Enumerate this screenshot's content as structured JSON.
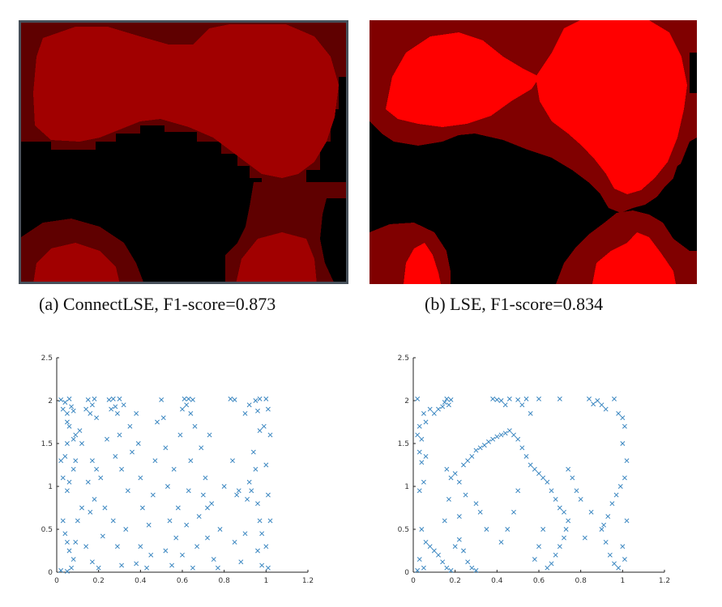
{
  "figure": {
    "panel_a": {
      "caption": "(a) ConnectLSE, F1-score=0.873",
      "colors": {
        "background": "#000000",
        "dark_red": "#5f0000",
        "red": "#a10000",
        "bright_red": "#ff0000",
        "border": "#47505a"
      }
    },
    "panel_b": {
      "caption": "(b) LSE, F1-score=0.834",
      "colors": {
        "background": "#000000",
        "dark_red": "#800000",
        "bright_red": "#ff0000"
      }
    }
  },
  "chart_data": [
    {
      "type": "scatter",
      "marker": "x",
      "color": "#3a86c0",
      "xlim": [
        0,
        1.2
      ],
      "ylim": [
        0,
        2.5
      ],
      "xticks": [
        "0",
        "0.2",
        "0.4",
        "0.6",
        "0.8",
        "1",
        "1.2"
      ],
      "yticks": [
        "0",
        "0.5",
        "1",
        "1.5",
        "2",
        "2.5"
      ],
      "points": [
        [
          0.02,
          2.01
        ],
        [
          0.04,
          1.98
        ],
        [
          0.06,
          2.02
        ],
        [
          0.03,
          1.9
        ],
        [
          0.05,
          1.85
        ],
        [
          0.07,
          1.93
        ],
        [
          0.08,
          1.88
        ],
        [
          0.05,
          1.75
        ],
        [
          0.06,
          1.7
        ],
        [
          0.08,
          1.55
        ],
        [
          0.09,
          1.6
        ],
        [
          0.05,
          1.5
        ],
        [
          0.02,
          1.3
        ],
        [
          0.04,
          1.35
        ],
        [
          0.03,
          1.1
        ],
        [
          0.06,
          1.05
        ],
        [
          0.05,
          0.95
        ],
        [
          0.03,
          0.6
        ],
        [
          0.04,
          0.45
        ],
        [
          0.05,
          0.35
        ],
        [
          0.06,
          0.25
        ],
        [
          0.08,
          0.15
        ],
        [
          0.07,
          0.05
        ],
        [
          0.02,
          0.02
        ],
        [
          0.05,
          0.01
        ],
        [
          0.09,
          0.35
        ],
        [
          0.1,
          0.6
        ],
        [
          0.12,
          0.75
        ],
        [
          0.08,
          1.2
        ],
        [
          0.09,
          1.3
        ],
        [
          0.12,
          1.5
        ],
        [
          0.11,
          1.65
        ],
        [
          0.14,
          1.9
        ],
        [
          0.15,
          2.01
        ],
        [
          0.17,
          1.95
        ],
        [
          0.18,
          2.02
        ],
        [
          0.16,
          1.85
        ],
        [
          0.19,
          1.8
        ],
        [
          0.17,
          1.3
        ],
        [
          0.19,
          1.2
        ],
        [
          0.15,
          1.05
        ],
        [
          0.18,
          0.85
        ],
        [
          0.16,
          0.7
        ],
        [
          0.14,
          0.3
        ],
        [
          0.17,
          0.12
        ],
        [
          0.2,
          0.05
        ],
        [
          0.22,
          0.42
        ],
        [
          0.23,
          0.75
        ],
        [
          0.21,
          1.1
        ],
        [
          0.24,
          1.55
        ],
        [
          0.25,
          2.01
        ],
        [
          0.27,
          2.02
        ],
        [
          0.28,
          1.93
        ],
        [
          0.29,
          1.85
        ],
        [
          0.26,
          1.9
        ],
        [
          0.3,
          2.02
        ],
        [
          0.32,
          1.95
        ],
        [
          0.3,
          1.6
        ],
        [
          0.31,
          1.2
        ],
        [
          0.28,
          1.35
        ],
        [
          0.27,
          0.6
        ],
        [
          0.29,
          0.3
        ],
        [
          0.31,
          0.08
        ],
        [
          0.33,
          0.5
        ],
        [
          0.34,
          0.95
        ],
        [
          0.36,
          1.4
        ],
        [
          0.35,
          1.7
        ],
        [
          0.38,
          1.85
        ],
        [
          0.39,
          1.5
        ],
        [
          0.4,
          1.1
        ],
        [
          0.41,
          0.75
        ],
        [
          0.4,
          0.3
        ],
        [
          0.38,
          0.1
        ],
        [
          0.43,
          0.05
        ],
        [
          0.45,
          0.2
        ],
        [
          0.44,
          0.55
        ],
        [
          0.46,
          0.9
        ],
        [
          0.47,
          1.3
        ],
        [
          0.48,
          1.75
        ],
        [
          0.5,
          2.01
        ],
        [
          0.51,
          1.8
        ],
        [
          0.52,
          1.45
        ],
        [
          0.53,
          1.0
        ],
        [
          0.54,
          0.6
        ],
        [
          0.52,
          0.25
        ],
        [
          0.55,
          0.08
        ],
        [
          0.57,
          0.4
        ],
        [
          0.58,
          0.75
        ],
        [
          0.56,
          1.2
        ],
        [
          0.59,
          1.6
        ],
        [
          0.6,
          1.9
        ],
        [
          0.61,
          2.02
        ],
        [
          0.62,
          1.95
        ],
        [
          0.63,
          2.02
        ],
        [
          0.64,
          1.85
        ],
        [
          0.65,
          2.01
        ],
        [
          0.66,
          1.7
        ],
        [
          0.64,
          1.3
        ],
        [
          0.63,
          0.95
        ],
        [
          0.62,
          0.55
        ],
        [
          0.6,
          0.2
        ],
        [
          0.65,
          0.05
        ],
        [
          0.67,
          0.3
        ],
        [
          0.68,
          0.65
        ],
        [
          0.7,
          0.9
        ],
        [
          0.72,
          0.75
        ],
        [
          0.74,
          0.8
        ],
        [
          0.71,
          1.1
        ],
        [
          0.69,
          1.45
        ],
        [
          0.73,
          1.6
        ],
        [
          0.72,
          0.4
        ],
        [
          0.75,
          0.15
        ],
        [
          0.77,
          0.05
        ],
        [
          0.78,
          0.5
        ],
        [
          0.8,
          1.0
        ],
        [
          0.83,
          2.02
        ],
        [
          0.85,
          2.01
        ],
        [
          0.84,
          1.3
        ],
        [
          0.86,
          0.9
        ],
        [
          0.87,
          0.95
        ],
        [
          0.85,
          0.35
        ],
        [
          0.88,
          0.12
        ],
        [
          0.9,
          0.45
        ],
        [
          0.91,
          0.85
        ],
        [
          0.92,
          1.05
        ],
        [
          0.93,
          0.95
        ],
        [
          0.94,
          1.4
        ],
        [
          0.9,
          1.85
        ],
        [
          0.92,
          1.95
        ],
        [
          0.95,
          2.0
        ],
        [
          0.96,
          1.88
        ],
        [
          0.97,
          1.65
        ],
        [
          0.95,
          1.2
        ],
        [
          0.96,
          0.8
        ],
        [
          0.97,
          0.6
        ],
        [
          0.98,
          0.45
        ],
        [
          0.96,
          0.25
        ],
        [
          0.98,
          0.08
        ],
        [
          1.0,
          2.02
        ],
        [
          1.01,
          1.9
        ],
        [
          1.02,
          1.6
        ],
        [
          1.0,
          1.25
        ],
        [
          1.01,
          0.9
        ],
        [
          1.02,
          0.6
        ],
        [
          1.0,
          0.3
        ],
        [
          1.01,
          0.05
        ],
        [
          0.99,
          1.7
        ],
        [
          0.97,
          2.02
        ]
      ]
    },
    {
      "type": "scatter",
      "marker": "x",
      "color": "#3a86c0",
      "xlim": [
        0,
        1.2
      ],
      "ylim": [
        0,
        2.5
      ],
      "xticks": [
        "0",
        "0.2",
        "0.4",
        "0.6",
        "0.8",
        "1",
        "1.2"
      ],
      "yticks": [
        "0",
        "0.5",
        "1",
        "1.5",
        "2",
        "2.5"
      ],
      "points": [
        [
          0.02,
          2.02
        ],
        [
          0.03,
          1.7
        ],
        [
          0.02,
          1.6
        ],
        [
          0.04,
          1.55
        ],
        [
          0.03,
          1.4
        ],
        [
          0.05,
          1.85
        ],
        [
          0.06,
          1.75
        ],
        [
          0.08,
          1.9
        ],
        [
          0.1,
          1.85
        ],
        [
          0.12,
          1.9
        ],
        [
          0.14,
          1.93
        ],
        [
          0.15,
          1.98
        ],
        [
          0.16,
          2.02
        ],
        [
          0.18,
          2.01
        ],
        [
          0.17,
          1.95
        ],
        [
          0.04,
          1.28
        ],
        [
          0.06,
          1.35
        ],
        [
          0.05,
          1.05
        ],
        [
          0.03,
          0.95
        ],
        [
          0.04,
          0.5
        ],
        [
          0.06,
          0.35
        ],
        [
          0.03,
          0.15
        ],
        [
          0.05,
          0.05
        ],
        [
          0.02,
          0.02
        ],
        [
          0.08,
          0.3
        ],
        [
          0.1,
          0.25
        ],
        [
          0.12,
          0.2
        ],
        [
          0.14,
          0.12
        ],
        [
          0.16,
          0.05
        ],
        [
          0.18,
          0.02
        ],
        [
          0.2,
          0.3
        ],
        [
          0.22,
          0.38
        ],
        [
          0.24,
          0.25
        ],
        [
          0.26,
          0.12
        ],
        [
          0.28,
          0.05
        ],
        [
          0.3,
          0.02
        ],
        [
          0.15,
          0.6
        ],
        [
          0.17,
          0.85
        ],
        [
          0.16,
          1.2
        ],
        [
          0.18,
          1.1
        ],
        [
          0.2,
          1.15
        ],
        [
          0.22,
          1.05
        ],
        [
          0.24,
          1.25
        ],
        [
          0.26,
          1.3
        ],
        [
          0.28,
          1.35
        ],
        [
          0.3,
          1.42
        ],
        [
          0.32,
          1.45
        ],
        [
          0.34,
          1.48
        ],
        [
          0.36,
          1.52
        ],
        [
          0.38,
          1.55
        ],
        [
          0.4,
          1.58
        ],
        [
          0.42,
          1.6
        ],
        [
          0.44,
          1.62
        ],
        [
          0.46,
          1.65
        ],
        [
          0.48,
          1.6
        ],
        [
          0.5,
          1.55
        ],
        [
          0.52,
          1.45
        ],
        [
          0.54,
          1.35
        ],
        [
          0.56,
          1.25
        ],
        [
          0.58,
          1.2
        ],
        [
          0.6,
          1.15
        ],
        [
          0.62,
          1.1
        ],
        [
          0.64,
          1.05
        ],
        [
          0.66,
          0.95
        ],
        [
          0.68,
          0.85
        ],
        [
          0.7,
          0.75
        ],
        [
          0.72,
          0.7
        ],
        [
          0.74,
          0.6
        ],
        [
          0.73,
          0.5
        ],
        [
          0.72,
          0.4
        ],
        [
          0.7,
          0.3
        ],
        [
          0.68,
          0.2
        ],
        [
          0.66,
          0.1
        ],
        [
          0.64,
          0.05
        ],
        [
          0.38,
          2.02
        ],
        [
          0.4,
          2.01
        ],
        [
          0.42,
          2.0
        ],
        [
          0.44,
          1.95
        ],
        [
          0.46,
          2.02
        ],
        [
          0.5,
          2.01
        ],
        [
          0.52,
          1.95
        ],
        [
          0.54,
          2.02
        ],
        [
          0.56,
          1.85
        ],
        [
          0.6,
          2.02
        ],
        [
          0.7,
          2.02
        ],
        [
          0.84,
          2.02
        ],
        [
          0.86,
          1.96
        ],
        [
          0.88,
          2.0
        ],
        [
          0.9,
          1.95
        ],
        [
          0.92,
          1.9
        ],
        [
          0.96,
          2.02
        ],
        [
          0.98,
          1.85
        ],
        [
          1.0,
          1.8
        ],
        [
          1.01,
          1.7
        ],
        [
          1.0,
          1.5
        ],
        [
          1.02,
          1.3
        ],
        [
          1.01,
          1.1
        ],
        [
          0.99,
          1.0
        ],
        [
          0.97,
          0.9
        ],
        [
          0.95,
          0.8
        ],
        [
          0.93,
          0.65
        ],
        [
          0.91,
          0.55
        ],
        [
          0.9,
          0.5
        ],
        [
          0.92,
          0.35
        ],
        [
          0.94,
          0.2
        ],
        [
          0.96,
          0.1
        ],
        [
          0.98,
          0.05
        ],
        [
          1.0,
          0.3
        ],
        [
          1.02,
          0.6
        ],
        [
          1.01,
          0.15
        ],
        [
          0.85,
          0.7
        ],
        [
          0.82,
          0.4
        ],
        [
          0.8,
          0.85
        ],
        [
          0.78,
          0.95
        ],
        [
          0.76,
          1.1
        ],
        [
          0.74,
          1.2
        ],
        [
          0.5,
          0.95
        ],
        [
          0.48,
          0.7
        ],
        [
          0.45,
          0.5
        ],
        [
          0.42,
          0.35
        ],
        [
          0.35,
          0.5
        ],
        [
          0.32,
          0.7
        ],
        [
          0.3,
          0.8
        ],
        [
          0.25,
          0.9
        ],
        [
          0.22,
          0.65
        ],
        [
          0.62,
          0.5
        ],
        [
          0.6,
          0.3
        ],
        [
          0.58,
          0.15
        ]
      ]
    }
  ]
}
